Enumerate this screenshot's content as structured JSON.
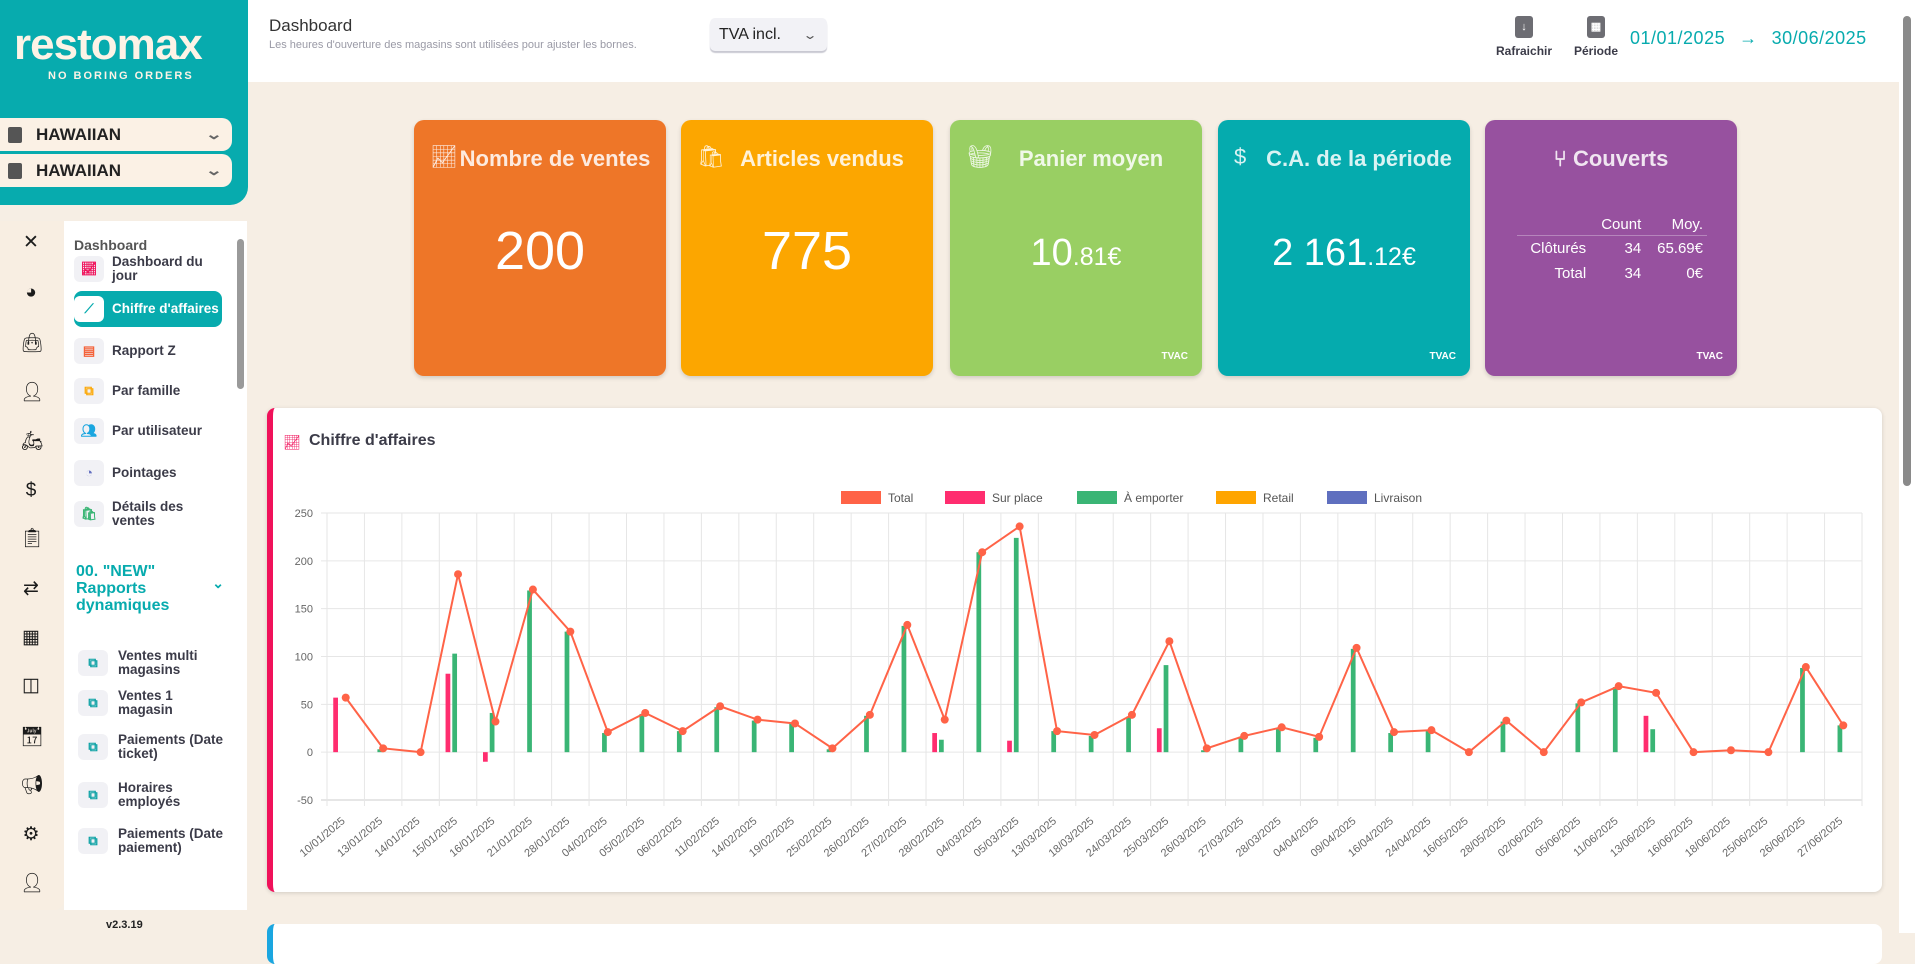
{
  "brand": {
    "logo_text": "restomax",
    "tagline": "NO BORING ORDERS"
  },
  "stores": [
    {
      "label": "HAWAIIAN",
      "icon": "building-icon"
    },
    {
      "label": "HAWAIIAN",
      "icon": "store-icon"
    }
  ],
  "rail_icons": [
    "close-icon",
    "dashboard-gauge-icon",
    "shopping-bag-icon",
    "user-tie-icon",
    "delivery-person-icon",
    "invoice-dollar-icon",
    "clipboard-list-icon",
    "transfer-arrows-icon",
    "boxes-icon",
    "web-devices-icon",
    "calendar-icon",
    "megaphone-icon",
    "gear-icon",
    "user-icon"
  ],
  "menu": {
    "section": "Dashboard",
    "items": [
      {
        "label": "Dashboard du jour",
        "icon": "chart-area-icon",
        "color": "#f0115a"
      },
      {
        "label": "Chiffre d'affaires",
        "icon": "chart-line-icon",
        "active": true
      },
      {
        "label": "Rapport Z",
        "icon": "file-icon",
        "color": "#f4623a"
      },
      {
        "label": "Par famille",
        "icon": "sitemap-icon",
        "color": "#fca600"
      },
      {
        "label": "Par utilisateur",
        "icon": "users-icon",
        "color": "#1aa6e0"
      },
      {
        "label": "Pointages",
        "icon": "user-clock-icon",
        "color": "#6470c0"
      },
      {
        "label": "Détails des ventes",
        "icon": "shopping-bag-icon",
        "color": "#3ab575"
      }
    ],
    "dynamic_section": "00. \"NEW\" Rapports dynamiques",
    "dynamic_items": [
      "Ventes multi magasins",
      "Ventes 1 magasin",
      "Paiements (Date ticket)",
      "Horaires employés",
      "Paiements (Date paiement)"
    ]
  },
  "version": "v2.3.19",
  "header": {
    "title": "Dashboard",
    "subtitle": "Les heures d'ouverture des magasins sont utilisées pour ajuster les bornes.",
    "tva_select": "TVA incl.",
    "refresh_label": "Rafraichir",
    "period_label": "Période",
    "date_from": "01/01/2025",
    "date_arrow": "→",
    "date_to": "30/06/2025"
  },
  "cards": [
    {
      "title": "Nombre de ventes",
      "value": "200",
      "color": "#ee7628",
      "icon": "chart-line-icon"
    },
    {
      "title": "Articles vendus",
      "value": "775",
      "color": "#fca600",
      "icon": "shopping-bag-icon"
    },
    {
      "title": "Panier moyen",
      "value_int": "10",
      "value_dec": ".81€",
      "footer": "TVAC",
      "color": "#99cf63",
      "icon": "basket-icon"
    },
    {
      "title": "C.A. de la période",
      "value_int": "2 161",
      "value_dec": ".12€",
      "footer": "TVAC",
      "color": "#05abae",
      "icon": "dollar-icon"
    },
    {
      "title": "Couverts",
      "color": "#97519f",
      "icon": "chair-icon",
      "footer": "TVAC",
      "table": {
        "headers": [
          "",
          "Count",
          "Moy."
        ],
        "rows": [
          [
            "Clôturés",
            "34",
            "65.69€"
          ],
          [
            "Total",
            "34",
            "0€"
          ]
        ]
      }
    }
  ],
  "panel": {
    "title": "Chiffre d'affaires"
  },
  "chart_data": {
    "type": "bar",
    "categories": [
      "10/01/2025",
      "13/01/2025",
      "14/01/2025",
      "15/01/2025",
      "16/01/2025",
      "21/01/2025",
      "28/01/2025",
      "04/02/2025",
      "05/02/2025",
      "06/02/2025",
      "11/02/2025",
      "14/02/2025",
      "19/02/2025",
      "25/02/2025",
      "26/02/2025",
      "27/02/2025",
      "28/02/2025",
      "04/03/2025",
      "05/03/2025",
      "13/03/2025",
      "18/03/2025",
      "24/03/2025",
      "25/03/2025",
      "26/03/2025",
      "27/03/2025",
      "28/03/2025",
      "04/04/2025",
      "09/04/2025",
      "16/04/2025",
      "24/04/2025",
      "16/05/2025",
      "28/05/2025",
      "02/06/2025",
      "05/06/2025",
      "11/06/2025",
      "13/06/2025",
      "16/06/2025",
      "18/06/2025",
      "25/06/2025",
      "26/06/2025",
      "27/06/2025"
    ],
    "series": [
      {
        "name": "Total",
        "type": "line",
        "color": "#ff6347",
        "values": [
          57,
          4,
          0,
          186,
          32,
          170,
          126,
          21,
          41,
          22,
          48,
          34,
          30,
          4,
          39,
          133,
          34,
          209,
          236,
          22,
          18,
          39,
          116,
          4,
          17,
          26,
          16,
          109,
          21,
          23,
          0,
          33,
          0,
          52,
          69,
          62,
          0,
          2,
          0,
          89,
          28
        ]
      },
      {
        "name": "Sur place",
        "type": "bar",
        "color": "#ff2d6f",
        "values": [
          57,
          0,
          0,
          82,
          -10,
          0,
          0,
          0,
          0,
          0,
          0,
          0,
          0,
          0,
          0,
          0,
          20,
          0,
          12,
          0,
          0,
          0,
          25,
          0,
          0,
          0,
          0,
          0,
          0,
          0,
          0,
          0,
          0,
          0,
          0,
          38,
          0,
          0,
          0,
          0,
          0
        ]
      },
      {
        "name": "À emporter",
        "type": "bar",
        "color": "#3ab575",
        "values": [
          0,
          3,
          0,
          103,
          41,
          169,
          126,
          20,
          40,
          22,
          47,
          33,
          30,
          3,
          38,
          132,
          13,
          209,
          224,
          22,
          17,
          37,
          91,
          2,
          16,
          25,
          15,
          108,
          20,
          22,
          0,
          32,
          0,
          51,
          68,
          24,
          0,
          0,
          0,
          88,
          28
        ]
      },
      {
        "name": "Retail",
        "type": "bar",
        "color": "#ffa500",
        "values": [
          0,
          0,
          0,
          0,
          0,
          0,
          0,
          0,
          0,
          0,
          0,
          0,
          0,
          0,
          0,
          0,
          0,
          0,
          0,
          0,
          0,
          0,
          0,
          0,
          0,
          0,
          0,
          0,
          0,
          0,
          0,
          0,
          0,
          0,
          0,
          0,
          0,
          0,
          0,
          0,
          0
        ]
      },
      {
        "name": "Livraison",
        "type": "bar",
        "color": "#5f6fbf",
        "values": [
          0,
          0,
          0,
          0,
          0,
          0,
          0,
          0,
          0,
          0,
          0,
          0,
          0,
          0,
          0,
          0,
          0,
          0,
          0,
          0,
          0,
          0,
          0,
          0,
          0,
          0,
          0,
          0,
          0,
          0,
          0,
          0,
          0,
          0,
          0,
          0,
          0,
          0,
          0,
          0,
          0
        ]
      }
    ],
    "ylim": [
      -50,
      250
    ],
    "yticks": [
      "250",
      "200",
      "150",
      "100",
      "50",
      "0",
      "-50"
    ],
    "grid": true,
    "legend": "top"
  }
}
